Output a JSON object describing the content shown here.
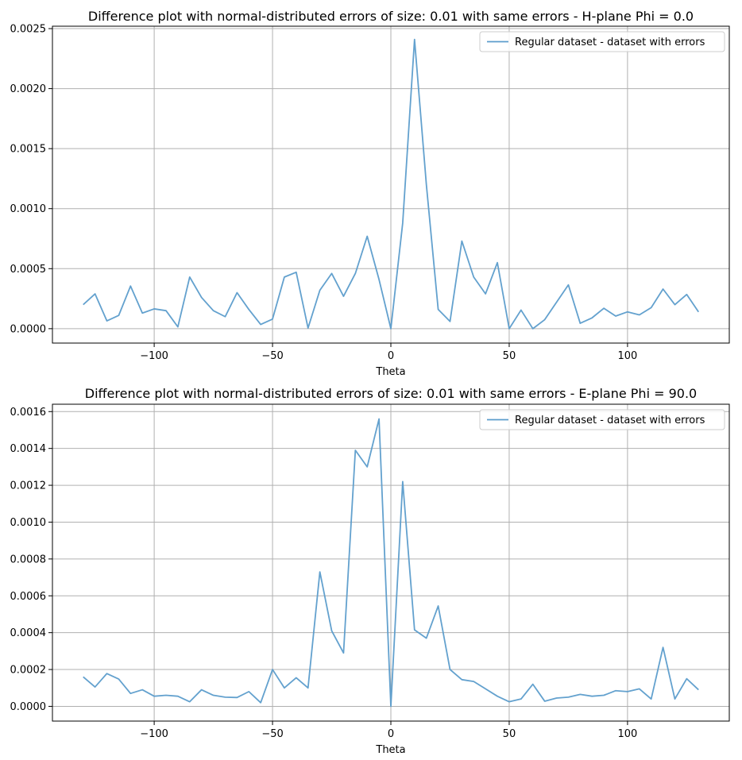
{
  "chart_data": [
    {
      "type": "line",
      "title": "Difference plot with normal-distributed errors of size: 0.01 with same errors - H-plane Phi = 0.0",
      "xlabel": "Theta",
      "ylabel": "",
      "xlim": [
        -143,
        143
      ],
      "ylim": [
        -0.00012,
        0.00252
      ],
      "xticks": [
        -100,
        -50,
        0,
        50,
        100
      ],
      "xtick_labels": [
        "−100",
        "−50",
        "0",
        "50",
        "100"
      ],
      "yticks": [
        0,
        0.0005,
        0.001,
        0.0015,
        0.002,
        0.0025
      ],
      "ytick_labels": [
        "0.0000",
        "0.0005",
        "0.0010",
        "0.0015",
        "0.0020",
        "0.0025"
      ],
      "grid": true,
      "legend": "top-right",
      "series": [
        {
          "name": "Regular dataset - dataset with errors",
          "color": "#5b9ccb",
          "x": [
            -130,
            -125,
            -120,
            -115,
            -110,
            -105,
            -100,
            -95,
            -90,
            -85,
            -80,
            -75,
            -70,
            -65,
            -60,
            -55,
            -50,
            -45,
            -40,
            -35,
            -30,
            -25,
            -20,
            -15,
            -10,
            -5,
            0,
            5,
            10,
            15,
            20,
            25,
            30,
            35,
            40,
            45,
            50,
            55,
            60,
            65,
            70,
            75,
            80,
            85,
            90,
            95,
            100,
            105,
            110,
            115,
            120,
            125,
            130
          ],
          "y": [
            0.0002,
            0.00029,
            6.5e-05,
            0.00011,
            0.000355,
            0.00013,
            0.000165,
            0.00015,
            1.5e-05,
            0.00043,
            0.00026,
            0.00015,
            0.0001,
            0.0003,
            0.00016,
            3.5e-05,
            8e-05,
            0.00043,
            0.00047,
            5e-06,
            0.00032,
            0.00046,
            0.00027,
            0.00046,
            0.00077,
            0.00041,
            0.0,
            0.00088,
            0.00241,
            0.0012,
            0.00016,
            6e-05,
            0.00073,
            0.00043,
            0.00029,
            0.00055,
            0.0,
            0.000155,
            0.0,
            7.5e-05,
            0.00022,
            0.000365,
            4.5e-05,
            9e-05,
            0.00017,
            0.000105,
            0.00014,
            0.000115,
            0.000175,
            0.00033,
            0.0002,
            0.000285,
            0.00014
          ]
        }
      ]
    },
    {
      "type": "line",
      "title": "Difference plot with normal-distributed errors of size: 0.01 with same errors - E-plane Phi = 90.0",
      "xlabel": "Theta",
      "ylabel": "",
      "xlim": [
        -143,
        143
      ],
      "ylim": [
        -8e-05,
        0.00164
      ],
      "xticks": [
        -100,
        -50,
        0,
        50,
        100
      ],
      "xtick_labels": [
        "−100",
        "−50",
        "0",
        "50",
        "100"
      ],
      "yticks": [
        0,
        0.0002,
        0.0004,
        0.0006,
        0.0008,
        0.001,
        0.0012,
        0.0014,
        0.0016
      ],
      "ytick_labels": [
        "0.0000",
        "0.0002",
        "0.0004",
        "0.0006",
        "0.0008",
        "0.0010",
        "0.0012",
        "0.0014",
        "0.0016"
      ],
      "grid": true,
      "legend": "top-right",
      "series": [
        {
          "name": "Regular dataset - dataset with errors",
          "color": "#5b9ccb",
          "x": [
            -130,
            -125,
            -120,
            -115,
            -110,
            -105,
            -100,
            -95,
            -90,
            -85,
            -80,
            -75,
            -70,
            -65,
            -60,
            -55,
            -50,
            -45,
            -40,
            -35,
            -30,
            -25,
            -20,
            -15,
            -10,
            -5,
            0,
            5,
            10,
            15,
            20,
            25,
            30,
            35,
            40,
            45,
            50,
            55,
            60,
            65,
            70,
            75,
            80,
            85,
            90,
            95,
            100,
            105,
            110,
            115,
            120,
            125,
            130
          ],
          "y": [
            0.00016,
            0.000105,
            0.000178,
            0.000148,
            7e-05,
            9e-05,
            5.5e-05,
            6e-05,
            5.5e-05,
            2.5e-05,
            9e-05,
            6e-05,
            5e-05,
            4.8e-05,
            8e-05,
            2e-05,
            0.0002,
            0.0001,
            0.000155,
            0.0001,
            0.00073,
            0.00041,
            0.00029,
            0.00139,
            0.0013,
            0.00156,
            0.0,
            0.00122,
            0.000415,
            0.00037,
            0.000545,
            0.0002,
            0.000145,
            0.000135,
            9.5e-05,
            5.5e-05,
            2.5e-05,
            4e-05,
            0.00012,
            2.8e-05,
            4.5e-05,
            5e-05,
            6.5e-05,
            5.5e-05,
            6e-05,
            8.5e-05,
            8e-05,
            9.5e-05,
            4e-05,
            0.00032,
            4e-05,
            0.00015,
            9e-05
          ]
        }
      ]
    }
  ]
}
